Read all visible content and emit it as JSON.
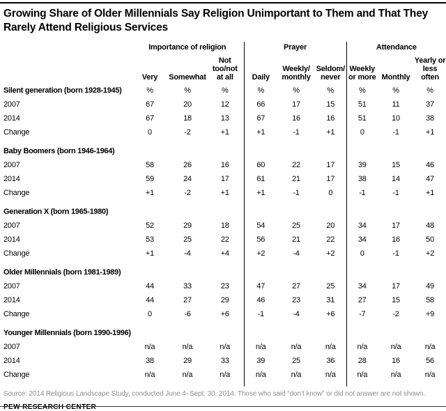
{
  "title": "Growing Share of Older Millennials Say Religion Unimportant to Them and That They Rarely Attend Religious Services",
  "colors": {
    "text": "#000000",
    "source_gray": "#8e8e8e",
    "rule": "#000000"
  },
  "chart_data": {
    "type": "table",
    "title": "Growing Share of Older Millennials Say Religion Unimportant to Them and That They Rarely Attend Religious Services",
    "unit": "%",
    "column_groups": [
      {
        "label": "Importance of religion",
        "columns": [
          "Very",
          "Somewhat",
          "Not\ntoo/not\nat all"
        ]
      },
      {
        "label": "Prayer",
        "columns": [
          "Daily",
          "Weekly/\nmonthly",
          "Seldom/\nnever"
        ]
      },
      {
        "label": "Attendance",
        "columns": [
          "Weekly\nor more",
          "Monthly",
          "Yearly or\nless\noften"
        ]
      }
    ],
    "sections": [
      {
        "label": "Silent generation (born 1928-1945)",
        "show_unit_row": true,
        "rows": [
          {
            "label": "2007",
            "values": [
              "67",
              "20",
              "12",
              "66",
              "17",
              "15",
              "51",
              "11",
              "37"
            ]
          },
          {
            "label": "2014",
            "values": [
              "67",
              "18",
              "13",
              "67",
              "16",
              "16",
              "51",
              "10",
              "38"
            ]
          },
          {
            "label": "Change",
            "values": [
              "0",
              "-2",
              "+1",
              "+1",
              "-1",
              "+1",
              "0",
              "-1",
              "+1"
            ]
          }
        ]
      },
      {
        "label": "Baby Boomers (born 1946-1964)",
        "show_unit_row": false,
        "rows": [
          {
            "label": "2007",
            "values": [
              "58",
              "26",
              "16",
              "60",
              "22",
              "17",
              "39",
              "15",
              "46"
            ]
          },
          {
            "label": "2014",
            "values": [
              "59",
              "24",
              "17",
              "61",
              "21",
              "17",
              "38",
              "14",
              "47"
            ]
          },
          {
            "label": "Change",
            "values": [
              "+1",
              "-2",
              "+1",
              "+1",
              "-1",
              "0",
              "-1",
              "-1",
              "+1"
            ]
          }
        ]
      },
      {
        "label": "Generation X (born 1965-1980)",
        "show_unit_row": false,
        "rows": [
          {
            "label": "2007",
            "values": [
              "52",
              "29",
              "18",
              "54",
              "25",
              "20",
              "34",
              "17",
              "48"
            ]
          },
          {
            "label": "2014",
            "values": [
              "53",
              "25",
              "22",
              "56",
              "21",
              "22",
              "34",
              "16",
              "50"
            ]
          },
          {
            "label": "Change",
            "values": [
              "+1",
              "-4",
              "+4",
              "+2",
              "-4",
              "+2",
              "0",
              "-1",
              "+2"
            ]
          }
        ]
      },
      {
        "label": "Older Millennials (born 1981-1989)",
        "show_unit_row": false,
        "rows": [
          {
            "label": "2007",
            "values": [
              "44",
              "33",
              "23",
              "47",
              "27",
              "25",
              "34",
              "17",
              "49"
            ]
          },
          {
            "label": "2014",
            "values": [
              "44",
              "27",
              "29",
              "46",
              "23",
              "31",
              "27",
              "15",
              "58"
            ]
          },
          {
            "label": "Change",
            "values": [
              "0",
              "-6",
              "+6",
              "-1",
              "-4",
              "+6",
              "-7",
              "-2",
              "+9"
            ]
          }
        ]
      },
      {
        "label": "Younger Millennials (born 1990-1996)",
        "show_unit_row": false,
        "rows": [
          {
            "label": "2007",
            "values": [
              "n/a",
              "n/a",
              "n/a",
              "n/a",
              "n/a",
              "n/a",
              "n/a",
              "n/a",
              "n/a"
            ]
          },
          {
            "label": "2014",
            "values": [
              "38",
              "29",
              "33",
              "39",
              "25",
              "36",
              "28",
              "16",
              "56"
            ]
          },
          {
            "label": "Change",
            "values": [
              "n/a",
              "n/a",
              "n/a",
              "n/a",
              "n/a",
              "n/a",
              "n/a",
              "n/a",
              "n/a"
            ]
          }
        ]
      }
    ]
  },
  "footer": {
    "source": "Source: 2014 Religious Landscape Study, conducted June 4–Sept. 30, 2014. Those who said “don’t know” or did not answer are not shown.",
    "brand": "PEW RESEARCH CENTER"
  }
}
